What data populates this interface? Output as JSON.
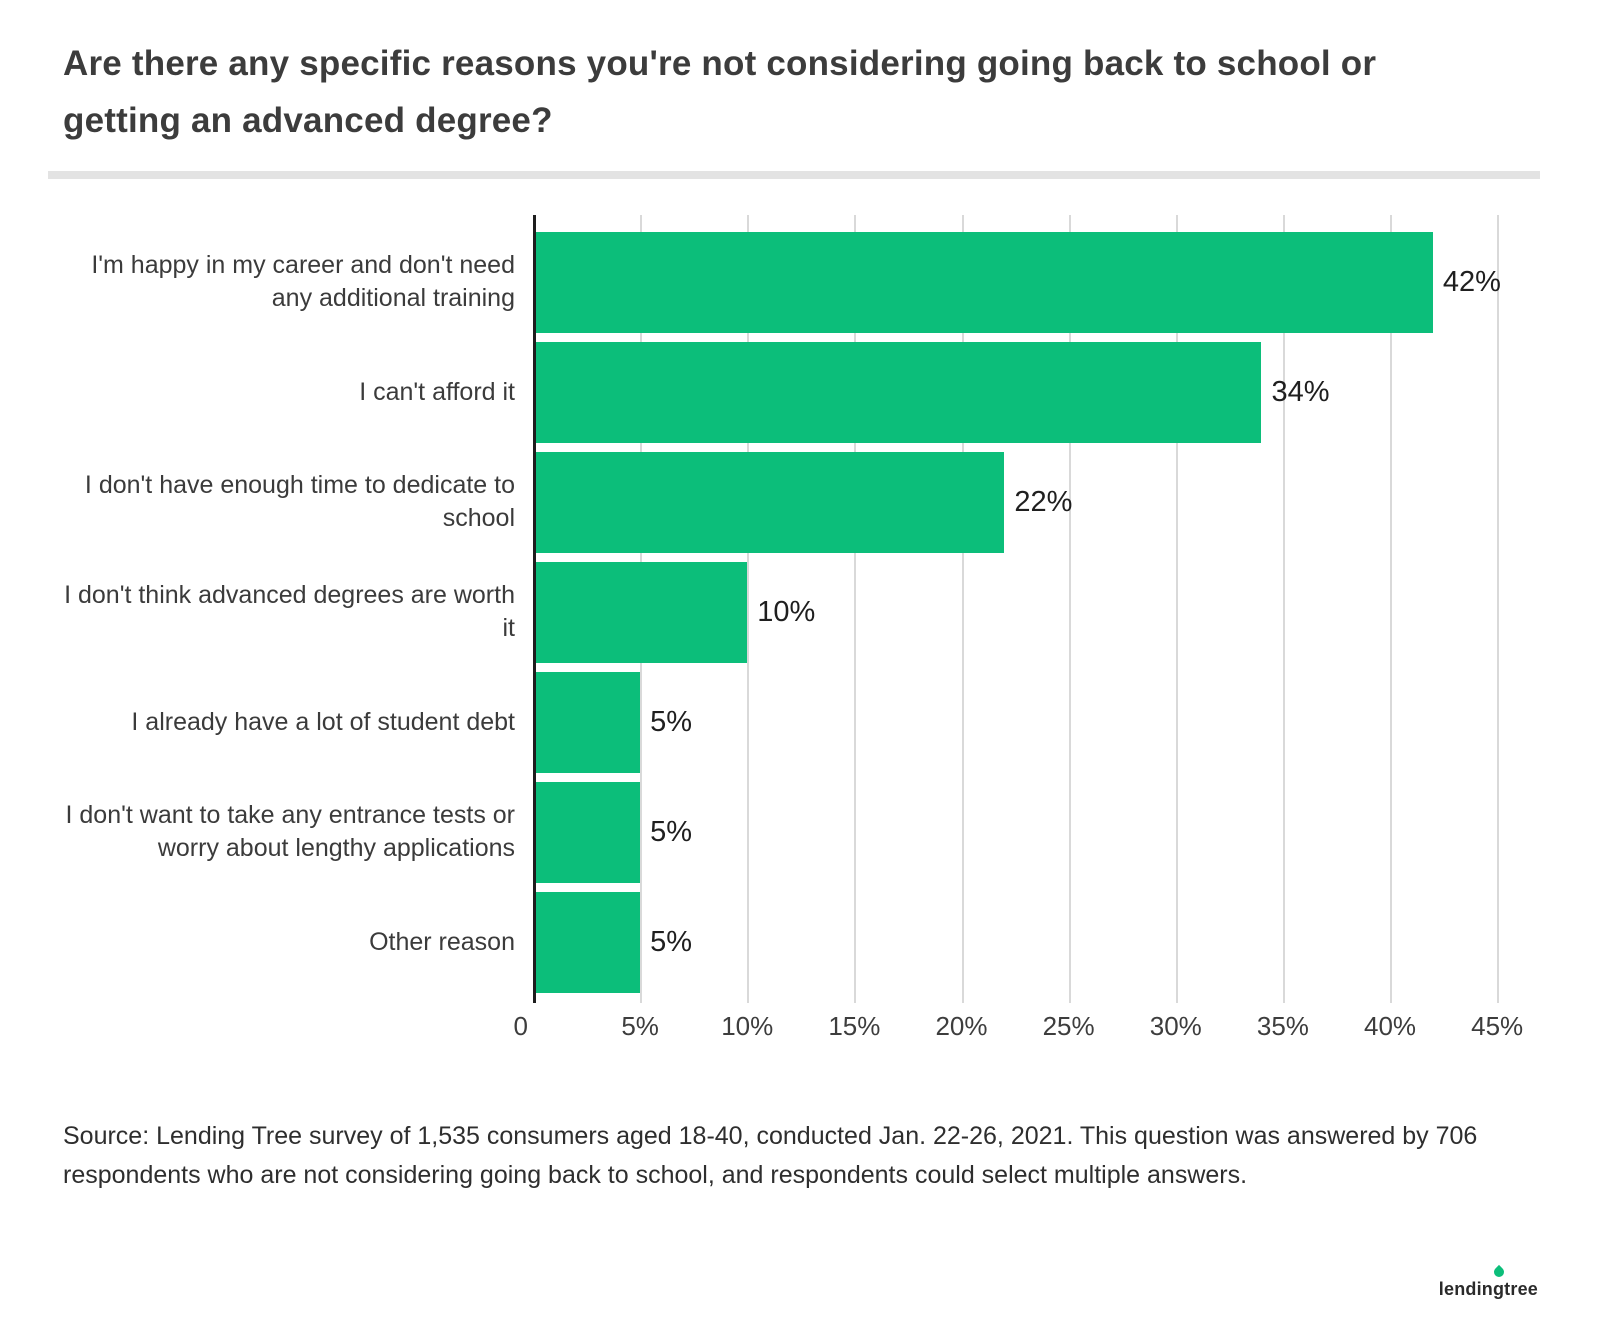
{
  "title": "Are there any specific reasons you're not considering going back to school or getting an advanced degree?",
  "chart_data": {
    "type": "bar",
    "orientation": "horizontal",
    "title": "Are there any specific reasons you're not considering going back to school or getting an advanced degree?",
    "categories": [
      "I'm happy in my career and don't need any additional training",
      "I can't afford it",
      "I don't have enough time to dedicate to school",
      "I don't think advanced degrees are worth it",
      "I already have a lot of student debt",
      "I don't want to take any entrance tests or worry about lengthy applications",
      "Other reason"
    ],
    "values": [
      42,
      34,
      22,
      10,
      5,
      5,
      5
    ],
    "value_labels": [
      "42%",
      "34%",
      "22%",
      "10%",
      "5%",
      "5%",
      "5%"
    ],
    "x_ticks": [
      "0",
      "5%",
      "10%",
      "15%",
      "20%",
      "25%",
      "30%",
      "35%",
      "40%",
      "45%"
    ],
    "x_tick_values": [
      0,
      5,
      10,
      15,
      20,
      25,
      30,
      35,
      40,
      45
    ],
    "xlim": [
      0,
      47
    ],
    "xlabel": "",
    "ylabel": "",
    "grid": true,
    "legend": false,
    "bar_color": "#0cbe7a",
    "gridline_color": "#d9d9d9",
    "axis_color": "#1e1e1e"
  },
  "source": {
    "text": "Source: Lending Tree survey of 1,535 consumers aged 18-40, conducted Jan. 22-26, 2021. This question was answered by 706 respondents who are not considering going back to school, and respondents could select multiple answers."
  },
  "footer": {
    "logo_text": "lendingtree"
  }
}
